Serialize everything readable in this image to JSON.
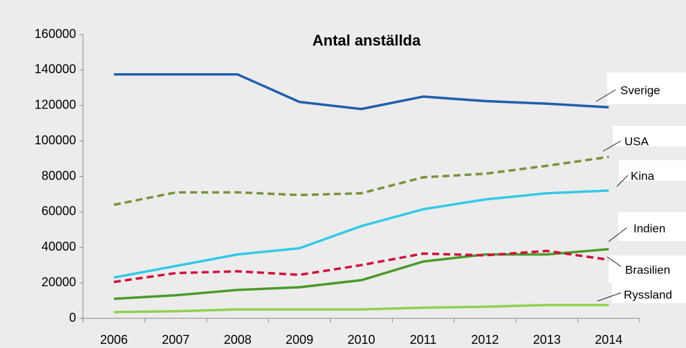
{
  "chart_data": {
    "type": "line",
    "title": "Antal anställda",
    "categories": [
      "2006",
      "2007",
      "2008",
      "2009",
      "2010",
      "2011",
      "2012",
      "2013",
      "2014"
    ],
    "ylim": [
      0,
      160000
    ],
    "yticks": [
      0,
      20000,
      40000,
      60000,
      80000,
      100000,
      120000,
      140000,
      160000
    ],
    "grid": false,
    "series": [
      {
        "name": "Sverige",
        "color": "#1f5fad",
        "dashed": false,
        "values": [
          137500,
          137500,
          137500,
          122000,
          118000,
          125000,
          122500,
          121000,
          119000
        ]
      },
      {
        "name": "USA",
        "color": "#77933c",
        "dashed": true,
        "values": [
          64000,
          71000,
          71000,
          69500,
          70500,
          79500,
          81500,
          86000,
          91000
        ]
      },
      {
        "name": "Kina",
        "color": "#33c9e8",
        "dashed": false,
        "values": [
          23000,
          29500,
          36000,
          39500,
          52000,
          61500,
          67000,
          70500,
          72000
        ]
      },
      {
        "name": "Indien",
        "color": "#4a9a2a",
        "dashed": false,
        "values": [
          11000,
          13000,
          16000,
          17500,
          21500,
          32000,
          36000,
          36000,
          39000
        ]
      },
      {
        "name": "Brasilien",
        "color": "#d0103a",
        "dashed": true,
        "values": [
          20500,
          25500,
          26500,
          24500,
          30000,
          36500,
          35500,
          38000,
          33000
        ]
      },
      {
        "name": "Ryssland",
        "color": "#92d050",
        "dashed": false,
        "values": [
          3500,
          4000,
          5000,
          5000,
          5000,
          6000,
          6500,
          7500,
          7500
        ]
      }
    ]
  }
}
